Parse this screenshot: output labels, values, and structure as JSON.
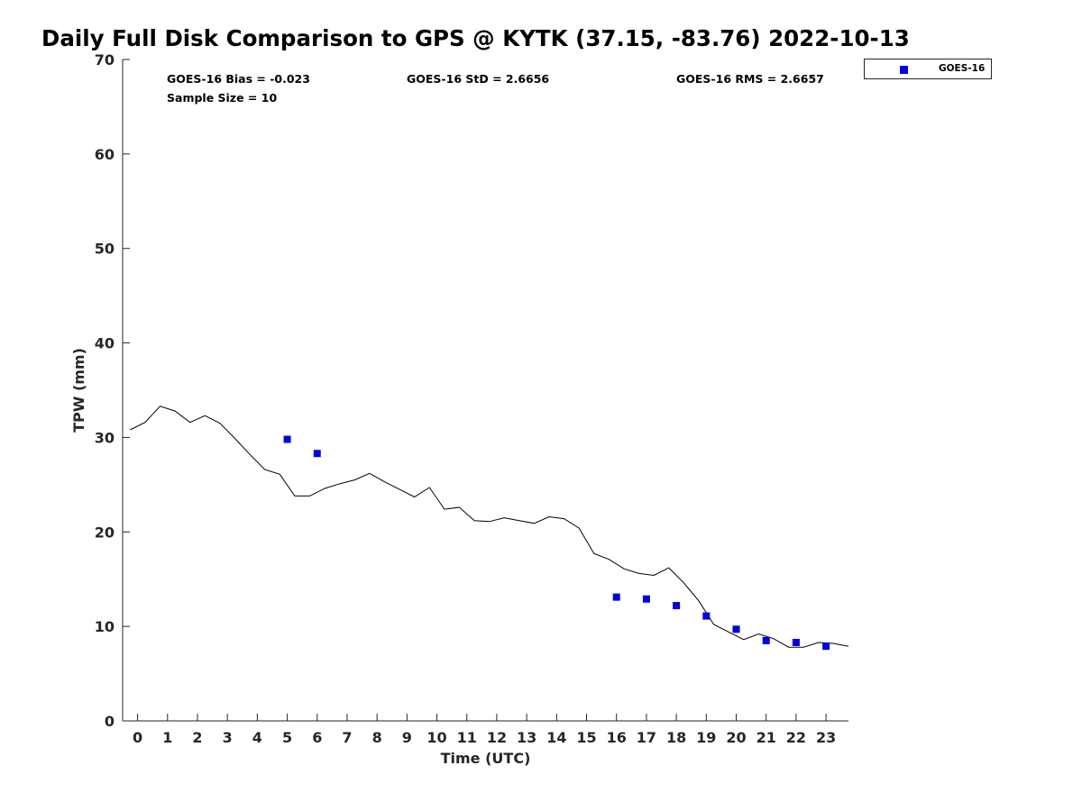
{
  "title": "Daily Full Disk Comparison to GPS @ KYTK (37.15, -83.76) 2022-10-13",
  "stats": {
    "bias": "GOES-16 Bias = -0.023",
    "std": "GOES-16 StD = 2.6656",
    "rms": "GOES-16 RMS = 2.6657",
    "sample_size": "Sample Size = 10"
  },
  "legend": {
    "label": "GOES-16",
    "color": "#0000dd"
  },
  "chart_data": {
    "type": "line",
    "title": "Daily Full Disk Comparison to GPS @ KYTK (37.15, -83.76) 2022-10-13",
    "xlabel": "Time (UTC)",
    "ylabel": "TPW (mm)",
    "xlim": [
      -0.5,
      23.75
    ],
    "ylim": [
      0,
      70
    ],
    "xticks": [
      0,
      1,
      2,
      3,
      4,
      5,
      6,
      7,
      8,
      9,
      10,
      11,
      12,
      13,
      14,
      15,
      16,
      17,
      18,
      19,
      20,
      21,
      22,
      23
    ],
    "yticks": [
      0,
      10,
      20,
      30,
      40,
      50,
      60,
      70
    ],
    "grid": false,
    "legend_position": "top-right, outside plot",
    "series": [
      {
        "type": "line",
        "color": "#000000",
        "x": [
          -0.25,
          0.25,
          0.75,
          1.25,
          1.75,
          2.25,
          2.75,
          3.25,
          3.75,
          4.25,
          4.75,
          5.25,
          5.75,
          6.25,
          6.75,
          7.25,
          7.75,
          8.25,
          8.75,
          9.25,
          9.75,
          10.25,
          10.75,
          11.25,
          11.75,
          12.25,
          12.75,
          13.25,
          13.75,
          14.25,
          14.75,
          15.25,
          15.75,
          16.25,
          16.75,
          17.25,
          17.75,
          18.25,
          18.75,
          19.25,
          19.75,
          20.25,
          20.75,
          21.25,
          21.75,
          22.25,
          22.75,
          23.25,
          23.75
        ],
        "y": [
          30.8,
          31.6,
          33.3,
          32.8,
          31.6,
          32.3,
          31.5,
          29.9,
          28.2,
          26.6,
          26.1,
          23.8,
          23.8,
          24.6,
          25.1,
          25.5,
          26.2,
          25.3,
          24.5,
          23.7,
          24.7,
          22.4,
          22.6,
          21.2,
          21.1,
          21.5,
          21.2,
          20.9,
          21.6,
          21.4,
          20.4,
          17.7,
          17.1,
          16.1,
          15.6,
          15.4,
          16.2,
          14.6,
          12.7,
          10.2,
          9.4,
          8.6,
          9.2,
          8.7,
          7.8,
          7.8,
          8.3,
          8.2,
          7.9
        ]
      },
      {
        "name": "GOES-16",
        "type": "scatter",
        "color": "#0000dd",
        "x": [
          5,
          6,
          16,
          17,
          18,
          19,
          20,
          21,
          22,
          23
        ],
        "y": [
          29.8,
          28.3,
          13.1,
          12.9,
          12.2,
          11.1,
          9.7,
          8.5,
          8.3,
          7.9
        ]
      }
    ]
  }
}
